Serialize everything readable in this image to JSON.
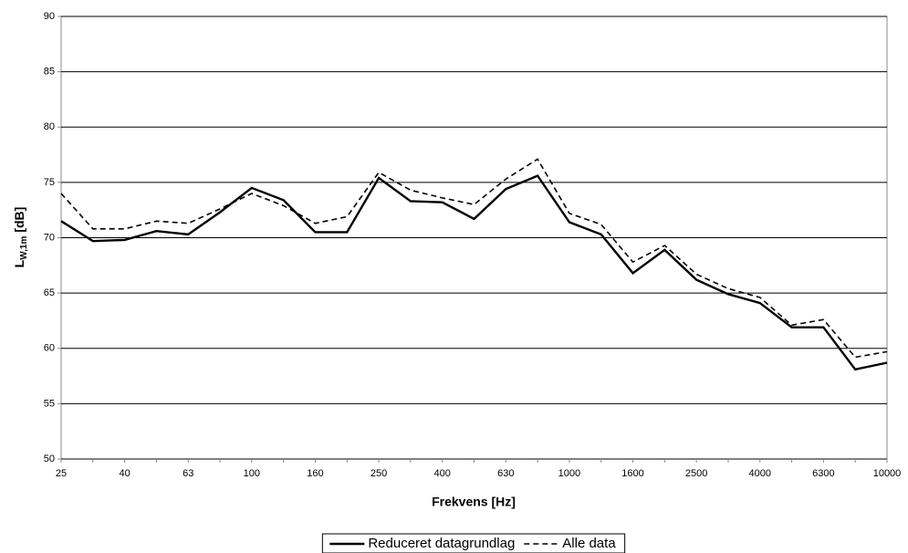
{
  "chart_data": {
    "type": "line",
    "x_label": "Frekvens [Hz]",
    "y_label": {
      "main": "L",
      "sub": "W,1m",
      "unit": "[dB]"
    },
    "categories": [
      25,
      null,
      40,
      null,
      63,
      null,
      100,
      null,
      160,
      null,
      250,
      null,
      400,
      null,
      630,
      null,
      1000,
      null,
      1600,
      null,
      2500,
      null,
      4000,
      null,
      6300,
      null,
      10000
    ],
    "series": [
      {
        "name": "Reduceret datagrundlag",
        "color": "#000000",
        "dash": "solid",
        "values": [
          71.5,
          69.7,
          69.8,
          70.6,
          70.3,
          72.3,
          74.5,
          73.4,
          70.5,
          70.5,
          75.4,
          73.3,
          73.2,
          71.7,
          74.4,
          75.6,
          71.4,
          70.3,
          66.8,
          68.9,
          66.2,
          64.9,
          64.1,
          61.9,
          61.9,
          58.1,
          58.7
        ]
      },
      {
        "name": "Alle data",
        "color": "#000000",
        "dash": "dashed",
        "values": [
          74.0,
          70.8,
          70.8,
          71.5,
          71.3,
          72.6,
          74.0,
          72.9,
          71.3,
          71.9,
          75.9,
          74.3,
          73.6,
          73.0,
          75.3,
          77.1,
          72.2,
          71.2,
          67.8,
          69.3,
          66.7,
          65.4,
          64.6,
          62.1,
          62.6,
          59.2,
          59.7
        ]
      }
    ],
    "ylim": [
      50,
      90
    ],
    "yticks": [
      50,
      55,
      60,
      65,
      70,
      75,
      80,
      85,
      90
    ],
    "grid": true,
    "legend": "bottom"
  }
}
